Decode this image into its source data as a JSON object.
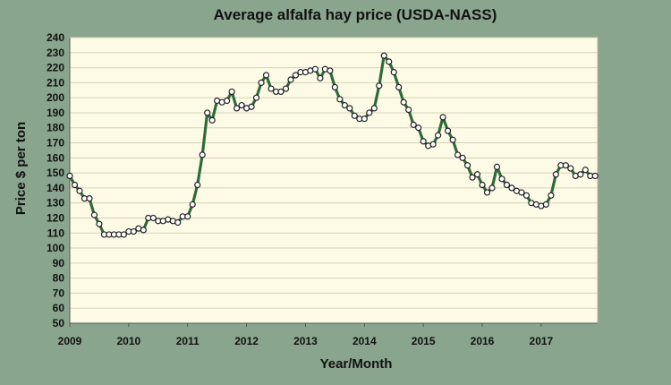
{
  "chart_data": {
    "type": "line",
    "title": "Average alfalfa hay price (USDA-NASS)",
    "xlabel": "Year/Month",
    "ylabel": "Price $ per ton",
    "ylim": [
      50,
      240
    ],
    "y_ticks": [
      50,
      60,
      70,
      80,
      90,
      100,
      110,
      120,
      130,
      140,
      150,
      160,
      170,
      180,
      190,
      200,
      210,
      220,
      230,
      240
    ],
    "x_ticks": [
      "2009",
      "2010",
      "2011",
      "2012",
      "2013",
      "2014",
      "2015",
      "2016",
      "2017"
    ],
    "grid": true,
    "legend": "none",
    "colors": {
      "plot_background": "#fdfbe6",
      "frame_background": "#8aa58e",
      "line": "#2f6b3a",
      "gridline": "#d6d2b8",
      "marker_fill": "#ffffff",
      "marker_stroke": "#222222"
    },
    "series": [
      {
        "values": [
          148,
          142,
          138,
          133,
          133,
          122,
          116,
          109,
          109,
          109,
          109,
          109,
          111,
          111,
          113,
          112,
          120,
          120,
          118,
          118,
          119,
          118,
          117,
          121,
          121,
          129,
          142,
          162,
          190,
          185,
          198,
          197,
          198,
          204,
          193,
          195,
          193,
          194,
          200,
          210,
          215,
          206,
          204,
          204,
          206,
          212,
          215,
          217,
          217,
          218,
          219,
          213,
          219,
          218,
          207,
          199,
          195,
          193,
          188,
          186,
          186,
          190,
          193,
          208,
          228,
          224,
          217,
          207,
          197,
          192,
          182,
          180,
          171,
          168,
          169,
          175,
          187,
          178,
          172,
          162,
          160,
          155,
          147,
          149,
          142,
          137,
          140,
          154,
          146,
          142,
          140,
          138,
          137,
          135,
          130,
          129,
          128,
          129,
          135,
          149,
          155,
          155,
          153,
          148,
          149,
          152,
          148,
          148
        ]
      }
    ]
  }
}
